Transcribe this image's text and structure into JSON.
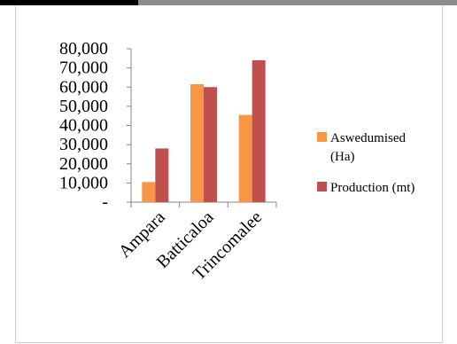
{
  "chart_data": {
    "type": "bar",
    "categories": [
      "Ampara",
      "Batticaloa",
      "Trincomalee"
    ],
    "series": [
      {
        "name": "Aswedumised (Ha)",
        "legend_lines": [
          "Aswedumised",
          "(Ha)"
        ],
        "values": [
          10500,
          61500,
          45500
        ],
        "color": "#f79646"
      },
      {
        "name": "Production (mt)",
        "legend_lines": [
          "Production (mt)"
        ],
        "values": [
          28000,
          60000,
          74000
        ],
        "color": "#c0504d"
      }
    ],
    "ylim": [
      0,
      80000
    ],
    "yticks": [
      0,
      10000,
      20000,
      30000,
      40000,
      50000,
      60000,
      70000,
      80000
    ],
    "ytick_labels": [
      "-",
      "10,000",
      "20,000",
      "30,000",
      "40,000",
      "50,000",
      "60,000",
      "70,000",
      "80,000"
    ],
    "grid": false,
    "legend_position": "right"
  }
}
